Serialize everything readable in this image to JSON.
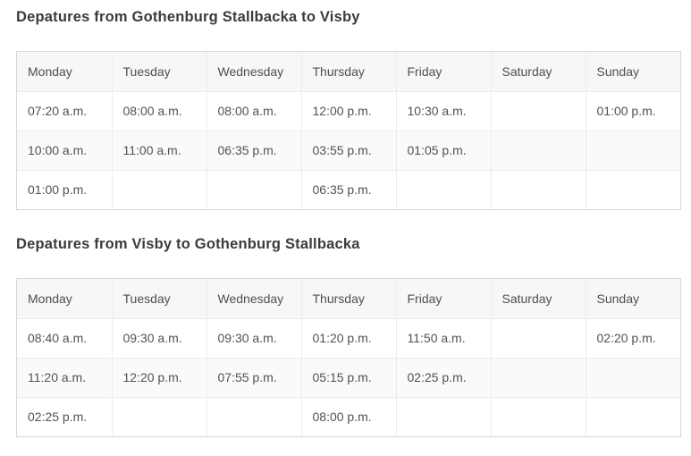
{
  "page": {
    "background": "#ffffff"
  },
  "colors": {
    "title_text": "#3a3b41",
    "header_background": "#f7f7f7",
    "header_text": "#4d4f54",
    "cell_text": "#505257",
    "outer_border": "#d7d7d7",
    "inner_border": "#ececec",
    "stripe_background": "#fafafa"
  },
  "tables": [
    {
      "title": "Depatures from Gothenburg Stallbacka to Visby",
      "columns": [
        "Monday",
        "Tuesday",
        "Wednesday",
        "Thursday",
        "Friday",
        "Saturday",
        "Sunday"
      ],
      "rows": [
        [
          "07:20 a.m.",
          "08:00 a.m.",
          "08:00 a.m.",
          "12:00 p.m.",
          "10:30 a.m.",
          "",
          "01:00 p.m."
        ],
        [
          "10:00 a.m.",
          "11:00 a.m.",
          "06:35 p.m.",
          "03:55 p.m.",
          "01:05 p.m.",
          "",
          ""
        ],
        [
          "01:00 p.m.",
          "",
          "",
          "06:35 p.m.",
          "",
          "",
          ""
        ]
      ]
    },
    {
      "title": "Depatures from Visby to Gothenburg Stallbacka",
      "columns": [
        "Monday",
        "Tuesday",
        "Wednesday",
        "Thursday",
        "Friday",
        "Saturday",
        "Sunday"
      ],
      "rows": [
        [
          "08:40 a.m.",
          "09:30 a.m.",
          "09:30 a.m.",
          "01:20 p.m.",
          "11:50 a.m.",
          "",
          "02:20 p.m."
        ],
        [
          "11:20 a.m.",
          "12:20 p.m.",
          "07:55 p.m.",
          "05:15 p.m.",
          "02:25 p.m.",
          "",
          ""
        ],
        [
          "02:25 p.m.",
          "",
          "",
          "08:00 p.m.",
          "",
          "",
          ""
        ]
      ]
    }
  ]
}
